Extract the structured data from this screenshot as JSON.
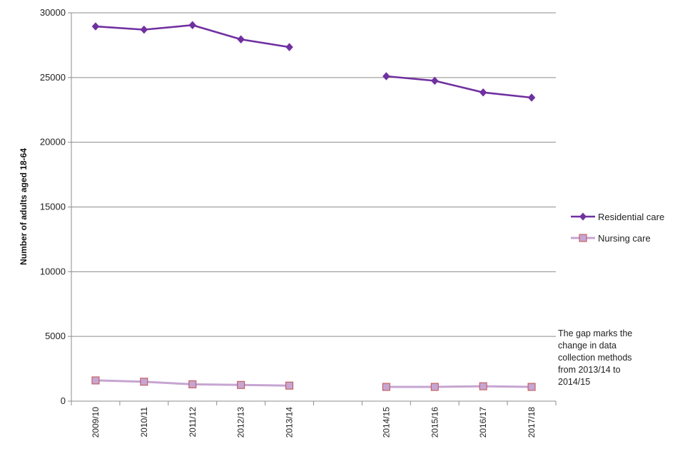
{
  "chart_data": {
    "type": "line",
    "title": "",
    "xlabel": "",
    "ylabel": "Number of adults aged 18-64",
    "ylim": [
      0,
      30000
    ],
    "yticks": [
      0,
      5000,
      10000,
      15000,
      20000,
      25000,
      30000
    ],
    "categories": [
      "2009/10",
      "2010/11",
      "2011/12",
      "2012/13",
      "2013/14",
      "",
      "2014/15",
      "2015/16",
      "2016/17",
      "2017/18"
    ],
    "grid": true,
    "legend_position": "right",
    "series": [
      {
        "name": "Residential care",
        "color": "#7030a0",
        "marker": "diamond",
        "values": [
          28950,
          28700,
          29050,
          27950,
          27350,
          null,
          25100,
          24750,
          23850,
          23450
        ]
      },
      {
        "name": "Nursing care",
        "color": "#c6a5d2",
        "marker_edge": "#c0504d",
        "marker": "square",
        "values": [
          1600,
          1500,
          1300,
          1250,
          1200,
          null,
          1100,
          1100,
          1150,
          1100
        ]
      }
    ],
    "annotation": {
      "lines": [
        "The gap marks the",
        "change in data",
        "collection methods",
        "from 2013/14 to",
        "2014/15"
      ]
    }
  }
}
